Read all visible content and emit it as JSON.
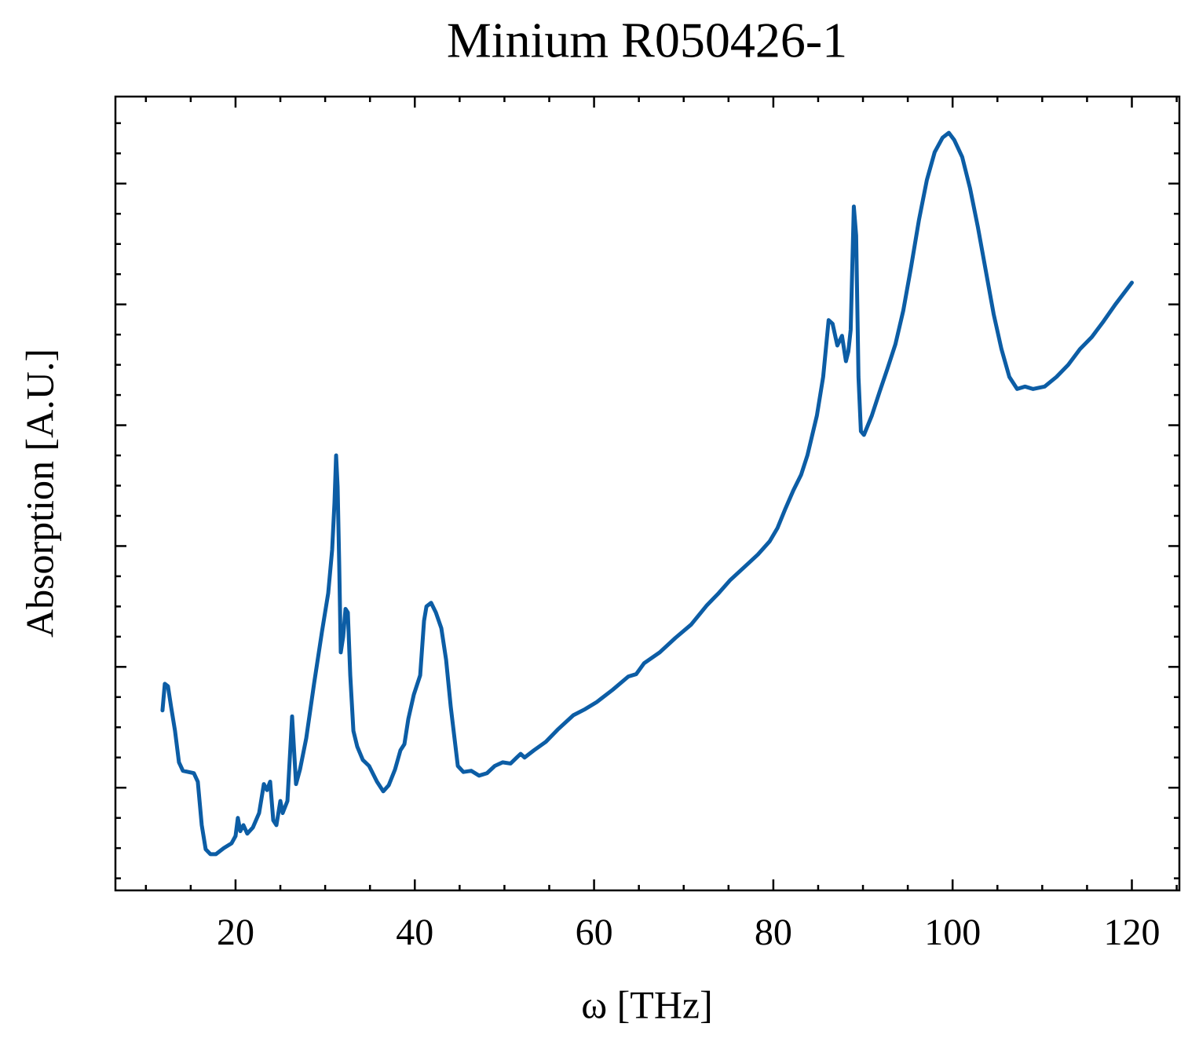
{
  "chart_data": {
    "type": "line",
    "title": "Minium R050426-1",
    "xlabel": "ω [THz]",
    "ylabel": "Absorption [A.U.]",
    "xlim": [
      6.6,
      125.3
    ],
    "xticks": [
      20,
      40,
      60,
      80,
      100,
      120
    ],
    "xminor_ticks": [
      10,
      15,
      25,
      30,
      35,
      45,
      50,
      55,
      65,
      70,
      75,
      85,
      90,
      95,
      105,
      110,
      115,
      125
    ],
    "ylim": [
      0.15,
      6.72
    ],
    "yticks": [
      1,
      2,
      3,
      4,
      5,
      6
    ],
    "yminor_ticks": [
      0.25,
      0.5,
      0.75,
      1.25,
      1.5,
      1.75,
      2.25,
      2.5,
      2.75,
      3.25,
      3.5,
      3.75,
      4.25,
      4.5,
      4.75,
      5.25,
      5.5,
      5.75,
      6.25,
      6.5
    ],
    "ytick_labels": false,
    "grid": false,
    "series": [
      {
        "color": "#0C5DA5",
        "x": [
          11.85,
          12.11,
          12.46,
          12.81,
          13.25,
          13.69,
          14.13,
          14.74,
          15.35,
          15.79,
          16.23,
          16.67,
          17.2,
          17.81,
          18.69,
          19.56,
          20.0,
          20.26,
          20.53,
          20.88,
          21.31,
          21.93,
          22.63,
          23.16,
          23.51,
          23.86,
          24.21,
          24.56,
          25.0,
          25.26,
          25.79,
          26.31,
          26.75,
          27.19,
          27.89,
          28.76,
          29.64,
          30.34,
          30.78,
          31.04,
          31.22,
          31.39,
          31.57,
          31.74,
          32.01,
          32.27,
          32.53,
          32.8,
          33.15,
          33.58,
          34.2,
          34.9,
          35.78,
          36.48,
          37.09,
          37.79,
          38.4,
          38.84,
          39.28,
          39.89,
          40.6,
          41.03,
          41.3,
          41.82,
          42.35,
          42.96,
          43.49,
          44.01,
          44.8,
          45.42,
          46.29,
          47.17,
          48.05,
          48.92,
          49.8,
          50.68,
          51.38,
          51.81,
          52.25,
          53.3,
          54.62,
          55.93,
          57.69,
          59.0,
          60.32,
          62.07,
          63.82,
          64.7,
          65.58,
          67.33,
          69.08,
          70.83,
          72.59,
          73.9,
          75.21,
          76.97,
          78.28,
          79.6,
          80.47,
          81.35,
          82.23,
          83.1,
          83.8,
          84.86,
          85.56,
          86.17,
          86.61,
          87.14,
          87.66,
          88.1,
          88.37,
          88.63,
          88.98,
          89.24,
          89.5,
          89.77,
          90.11,
          90.99,
          91.87,
          92.74,
          93.62,
          94.5,
          95.37,
          96.25,
          97.13,
          98.0,
          98.88,
          99.58,
          100.19,
          101.07,
          101.95,
          102.82,
          103.7,
          104.58,
          105.45,
          106.33,
          107.2,
          108.08,
          108.96,
          110.27,
          111.59,
          112.9,
          114.21,
          115.53,
          116.84,
          118.16,
          120.0
        ],
        "values": [
          1.64,
          1.86,
          1.84,
          1.67,
          1.47,
          1.21,
          1.14,
          1.13,
          1.12,
          1.05,
          0.69,
          0.49,
          0.45,
          0.45,
          0.5,
          0.54,
          0.6,
          0.75,
          0.64,
          0.69,
          0.62,
          0.67,
          0.79,
          1.03,
          0.98,
          1.05,
          0.73,
          0.69,
          0.89,
          0.79,
          0.89,
          1.59,
          1.03,
          1.15,
          1.41,
          1.86,
          2.29,
          2.61,
          2.97,
          3.36,
          3.75,
          3.49,
          2.84,
          2.12,
          2.25,
          2.48,
          2.45,
          1.93,
          1.47,
          1.34,
          1.23,
          1.18,
          1.05,
          0.97,
          1.02,
          1.15,
          1.31,
          1.36,
          1.57,
          1.77,
          1.93,
          2.38,
          2.5,
          2.53,
          2.45,
          2.32,
          2.06,
          1.67,
          1.18,
          1.13,
          1.14,
          1.1,
          1.12,
          1.18,
          1.21,
          1.2,
          1.25,
          1.28,
          1.25,
          1.31,
          1.38,
          1.48,
          1.6,
          1.65,
          1.71,
          1.81,
          1.92,
          1.94,
          2.03,
          2.12,
          2.24,
          2.35,
          2.51,
          2.61,
          2.72,
          2.84,
          2.93,
          3.04,
          3.15,
          3.31,
          3.46,
          3.59,
          3.75,
          4.08,
          4.4,
          4.87,
          4.84,
          4.66,
          4.74,
          4.53,
          4.61,
          4.79,
          5.81,
          5.57,
          4.4,
          3.95,
          3.92,
          4.08,
          4.28,
          4.47,
          4.67,
          4.95,
          5.31,
          5.7,
          6.03,
          6.26,
          6.38,
          6.42,
          6.36,
          6.22,
          5.96,
          5.64,
          5.28,
          4.92,
          4.63,
          4.4,
          4.3,
          4.32,
          4.3,
          4.32,
          4.4,
          4.5,
          4.63,
          4.73,
          4.86,
          5.0,
          5.18
        ]
      }
    ]
  }
}
